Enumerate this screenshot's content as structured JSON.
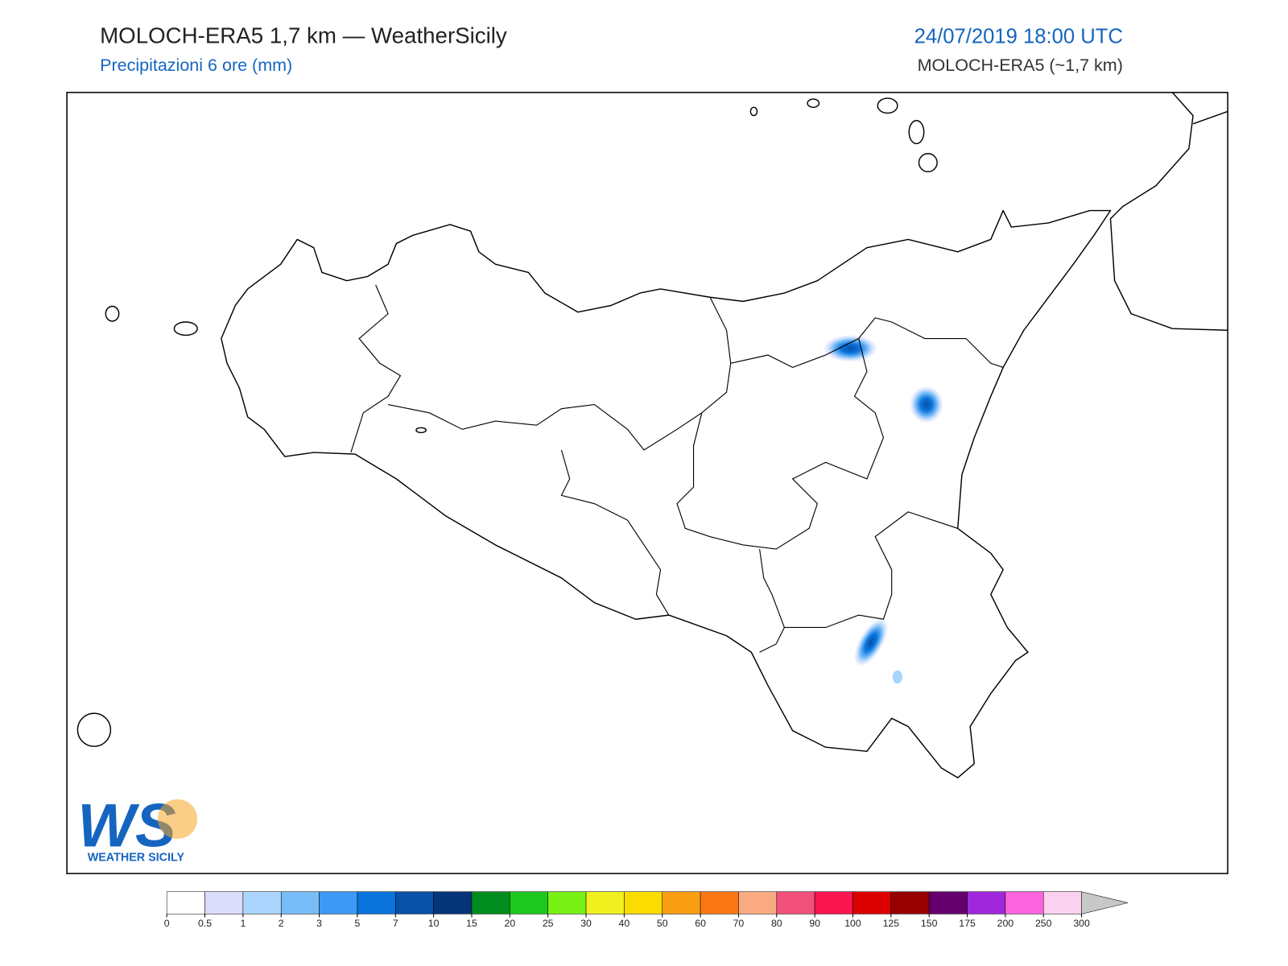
{
  "header": {
    "title": "MOLOCH-ERA5 1,7 km — WeatherSicily",
    "subtitle": "Precipitazioni 6 ore (mm)",
    "datetime": "24/07/2019 18:00 UTC",
    "model": "MOLOCH-ERA5 (~1,7 km)"
  },
  "logo": {
    "letters": "WS",
    "brand": "WEATHER SICILY"
  },
  "colorbar": {
    "ticks": [
      0,
      0.5,
      1,
      2,
      3,
      5,
      7,
      10,
      15,
      20,
      25,
      30,
      40,
      50,
      60,
      70,
      80,
      90,
      100,
      125,
      150,
      175,
      200,
      250,
      300
    ],
    "colors": [
      "#ffffff",
      "#dcdcfc",
      "#aad4fc",
      "#78bcf8",
      "#3c9af4",
      "#0a74dc",
      "#0850a8",
      "#063478",
      "#008c1e",
      "#1ec81e",
      "#78f014",
      "#f0f01e",
      "#fadc00",
      "#fa9e14",
      "#fa7814",
      "#faaa82",
      "#f0507a",
      "#fa1450",
      "#dc0000",
      "#960000",
      "#64006e",
      "#a028dc",
      "#fa64dc",
      "#fad2f0"
    ],
    "extend_color": "#c8c8c8"
  }
}
